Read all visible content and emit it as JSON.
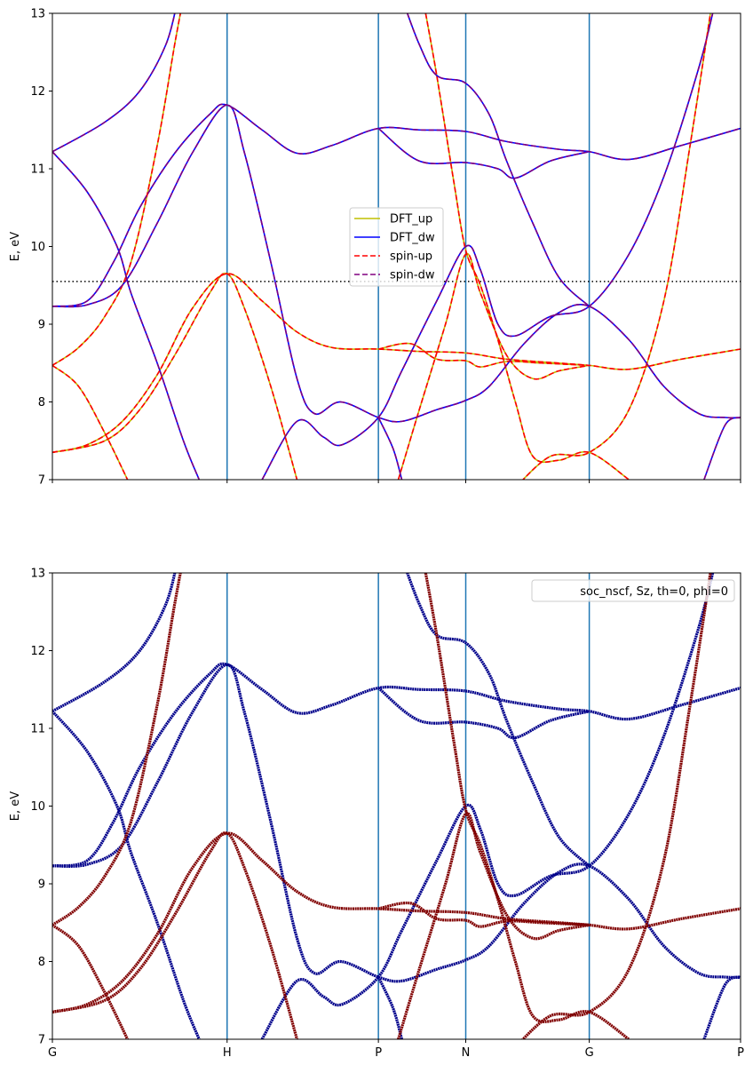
{
  "chart_data": [
    {
      "type": "line",
      "ylabel": "E, eV",
      "ylim": [
        7,
        13
      ],
      "yticks": [
        7,
        8,
        9,
        10,
        11,
        12,
        13
      ],
      "xticks": [
        0,
        1.0,
        1.866,
        2.366,
        3.073,
        3.939
      ],
      "xtick_labels": [
        "",
        "",
        "",
        "",
        "",
        ""
      ],
      "xlim": [
        0,
        3.939
      ],
      "fermi_level": 9.55,
      "legend_placement": "center",
      "series": [
        {
          "name": "DFT_up",
          "color": "#bfbf00",
          "style": "solid",
          "bands": "up"
        },
        {
          "name": "DFT_dw",
          "color": "#0000ff",
          "style": "solid",
          "bands": "dw"
        },
        {
          "name": "spin-up",
          "color": "#ff0000",
          "style": "dashed",
          "bands": "up"
        },
        {
          "name": "spin-dw",
          "color": "#800080",
          "style": "dashed",
          "bands": "dw"
        }
      ]
    },
    {
      "type": "scatter",
      "ylabel": "E, eV",
      "ylim": [
        7,
        13
      ],
      "yticks": [
        7,
        8,
        9,
        10,
        11,
        12,
        13
      ],
      "xticks": [
        0,
        1.0,
        1.866,
        2.366,
        3.073,
        3.939
      ],
      "xtick_labels": [
        "G",
        "H",
        "P",
        "N",
        "G",
        "P"
      ],
      "xlim": [
        0,
        3.939
      ],
      "colormap": "jet",
      "legend_placement": "upper right",
      "series": [
        {
          "name": "soc_nscf, Sz, th=0, phi=0",
          "color_up": "#800000",
          "color_dw": "#00008b"
        }
      ]
    }
  ],
  "bands": {
    "up": [
      [
        [
          0,
          7.35
        ],
        [
          0.2,
          7.45
        ],
        [
          0.4,
          7.75
        ],
        [
          0.6,
          8.35
        ],
        [
          0.8,
          9.2
        ],
        [
          1.0,
          9.65
        ],
        [
          1.2,
          9.3
        ],
        [
          1.4,
          8.9
        ],
        [
          1.6,
          8.7
        ],
        [
          1.866,
          8.68
        ],
        [
          2.1,
          8.65
        ],
        [
          2.366,
          8.63
        ],
        [
          2.6,
          8.55
        ],
        [
          2.9,
          8.5
        ],
        [
          3.073,
          8.47
        ],
        [
          3.3,
          8.42
        ],
        [
          3.6,
          8.55
        ],
        [
          3.939,
          8.68
        ]
      ],
      [
        [
          0,
          7.35
        ],
        [
          0.3,
          7.5
        ],
        [
          0.5,
          7.9
        ],
        [
          0.7,
          8.6
        ],
        [
          0.9,
          9.4
        ],
        [
          1.0,
          9.65
        ],
        [
          1.1,
          9.2
        ],
        [
          1.25,
          8.2
        ],
        [
          1.4,
          7.0
        ]
      ],
      [
        [
          0,
          8.47
        ],
        [
          0.15,
          8.7
        ],
        [
          0.3,
          9.1
        ],
        [
          0.45,
          9.8
        ],
        [
          0.6,
          11.3
        ],
        [
          0.7,
          12.6
        ],
        [
          0.75,
          13.2
        ]
      ],
      [
        [
          0,
          8.47
        ],
        [
          0.15,
          8.2
        ],
        [
          0.3,
          7.6
        ],
        [
          0.43,
          7.0
        ]
      ],
      [
        [
          2.12,
          13.2
        ],
        [
          2.2,
          12.2
        ],
        [
          2.3,
          10.8
        ],
        [
          2.366,
          9.95
        ],
        [
          2.45,
          9.5
        ],
        [
          2.55,
          8.8
        ],
        [
          2.65,
          8.0
        ],
        [
          2.75,
          7.3
        ],
        [
          2.9,
          7.25
        ],
        [
          3.073,
          7.35
        ],
        [
          3.3,
          7.0
        ]
      ],
      [
        [
          1.98,
          7.0
        ],
        [
          2.1,
          7.9
        ],
        [
          2.25,
          9.0
        ],
        [
          2.366,
          9.9
        ],
        [
          2.45,
          9.4
        ],
        [
          2.6,
          8.6
        ],
        [
          2.75,
          8.3
        ],
        [
          2.9,
          8.4
        ],
        [
          3.073,
          8.47
        ]
      ],
      [
        [
          2.65,
          6.9
        ],
        [
          2.85,
          7.3
        ],
        [
          3.073,
          7.35
        ],
        [
          3.3,
          7.9
        ],
        [
          3.5,
          9.3
        ],
        [
          3.65,
          11.3
        ],
        [
          3.78,
          13.2
        ]
      ],
      [
        [
          1.866,
          8.68
        ],
        [
          2.05,
          8.75
        ],
        [
          2.2,
          8.55
        ],
        [
          2.366,
          8.53
        ],
        [
          2.45,
          8.45
        ],
        [
          2.6,
          8.52
        ],
        [
          2.8,
          8.5
        ],
        [
          3.073,
          8.47
        ]
      ]
    ],
    "dw": [
      [
        [
          0,
          11.22
        ],
        [
          0.3,
          11.6
        ],
        [
          0.5,
          12.0
        ],
        [
          0.65,
          12.6
        ],
        [
          0.72,
          13.2
        ]
      ],
      [
        [
          0,
          11.22
        ],
        [
          0.2,
          10.7
        ],
        [
          0.37,
          10.0
        ],
        [
          0.45,
          9.4
        ],
        [
          0.6,
          8.5
        ],
        [
          0.75,
          7.5
        ],
        [
          0.84,
          7.0
        ]
      ],
      [
        [
          0,
          9.23
        ],
        [
          0.2,
          9.3
        ],
        [
          0.35,
          9.8
        ],
        [
          0.5,
          10.5
        ],
        [
          0.7,
          11.2
        ],
        [
          0.9,
          11.7
        ],
        [
          1.0,
          11.82
        ],
        [
          1.2,
          11.5
        ],
        [
          1.4,
          11.2
        ],
        [
          1.6,
          11.3
        ],
        [
          1.866,
          11.52
        ],
        [
          2.1,
          11.5
        ],
        [
          2.366,
          11.48
        ],
        [
          2.6,
          11.35
        ],
        [
          2.9,
          11.25
        ],
        [
          3.073,
          11.22
        ],
        [
          3.3,
          11.12
        ],
        [
          3.6,
          11.3
        ],
        [
          3.939,
          11.52
        ]
      ],
      [
        [
          0,
          9.23
        ],
        [
          0.2,
          9.25
        ],
        [
          0.4,
          9.5
        ],
        [
          0.6,
          10.3
        ],
        [
          0.8,
          11.2
        ],
        [
          1.0,
          11.82
        ],
        [
          1.1,
          11.2
        ],
        [
          1.25,
          9.8
        ],
        [
          1.4,
          8.3
        ],
        [
          1.5,
          7.85
        ],
        [
          1.65,
          8.0
        ],
        [
          1.866,
          7.8
        ],
        [
          2.0,
          7.75
        ],
        [
          2.2,
          7.9
        ],
        [
          2.366,
          8.02
        ],
        [
          2.5,
          8.2
        ],
        [
          2.7,
          8.75
        ],
        [
          2.9,
          9.15
        ],
        [
          3.073,
          9.23
        ],
        [
          3.3,
          8.8
        ],
        [
          3.5,
          8.2
        ],
        [
          3.7,
          7.85
        ],
        [
          3.85,
          7.8
        ],
        [
          3.939,
          7.8
        ]
      ],
      [
        [
          1.866,
          11.52
        ],
        [
          2.1,
          11.1
        ],
        [
          2.366,
          11.08
        ],
        [
          2.55,
          11.0
        ],
        [
          2.65,
          10.88
        ],
        [
          2.85,
          11.1
        ],
        [
          3.073,
          11.22
        ]
      ],
      [
        [
          1.2,
          7.0
        ],
        [
          1.4,
          7.75
        ],
        [
          1.55,
          7.55
        ],
        [
          1.66,
          7.45
        ],
        [
          1.866,
          7.8
        ],
        [
          2.0,
          8.4
        ],
        [
          2.2,
          9.3
        ],
        [
          2.366,
          10.0
        ],
        [
          2.45,
          9.7
        ],
        [
          2.55,
          9.0
        ],
        [
          2.65,
          8.85
        ],
        [
          2.85,
          9.1
        ],
        [
          3.073,
          9.23
        ],
        [
          3.3,
          9.9
        ],
        [
          3.5,
          10.9
        ],
        [
          3.7,
          12.3
        ],
        [
          3.8,
          13.2
        ]
      ],
      [
        [
          2.0,
          13.2
        ],
        [
          2.1,
          12.6
        ],
        [
          2.2,
          12.2
        ],
        [
          2.366,
          12.1
        ],
        [
          2.5,
          11.7
        ],
        [
          2.6,
          11.1
        ],
        [
          2.75,
          10.3
        ],
        [
          2.9,
          9.6
        ],
        [
          3.073,
          9.23
        ]
      ],
      [
        [
          1.866,
          7.8
        ],
        [
          1.95,
          7.4
        ],
        [
          2.0,
          7.0
        ]
      ],
      [
        [
          3.73,
          7.0
        ],
        [
          3.85,
          7.7
        ],
        [
          3.939,
          7.8
        ]
      ]
    ]
  }
}
